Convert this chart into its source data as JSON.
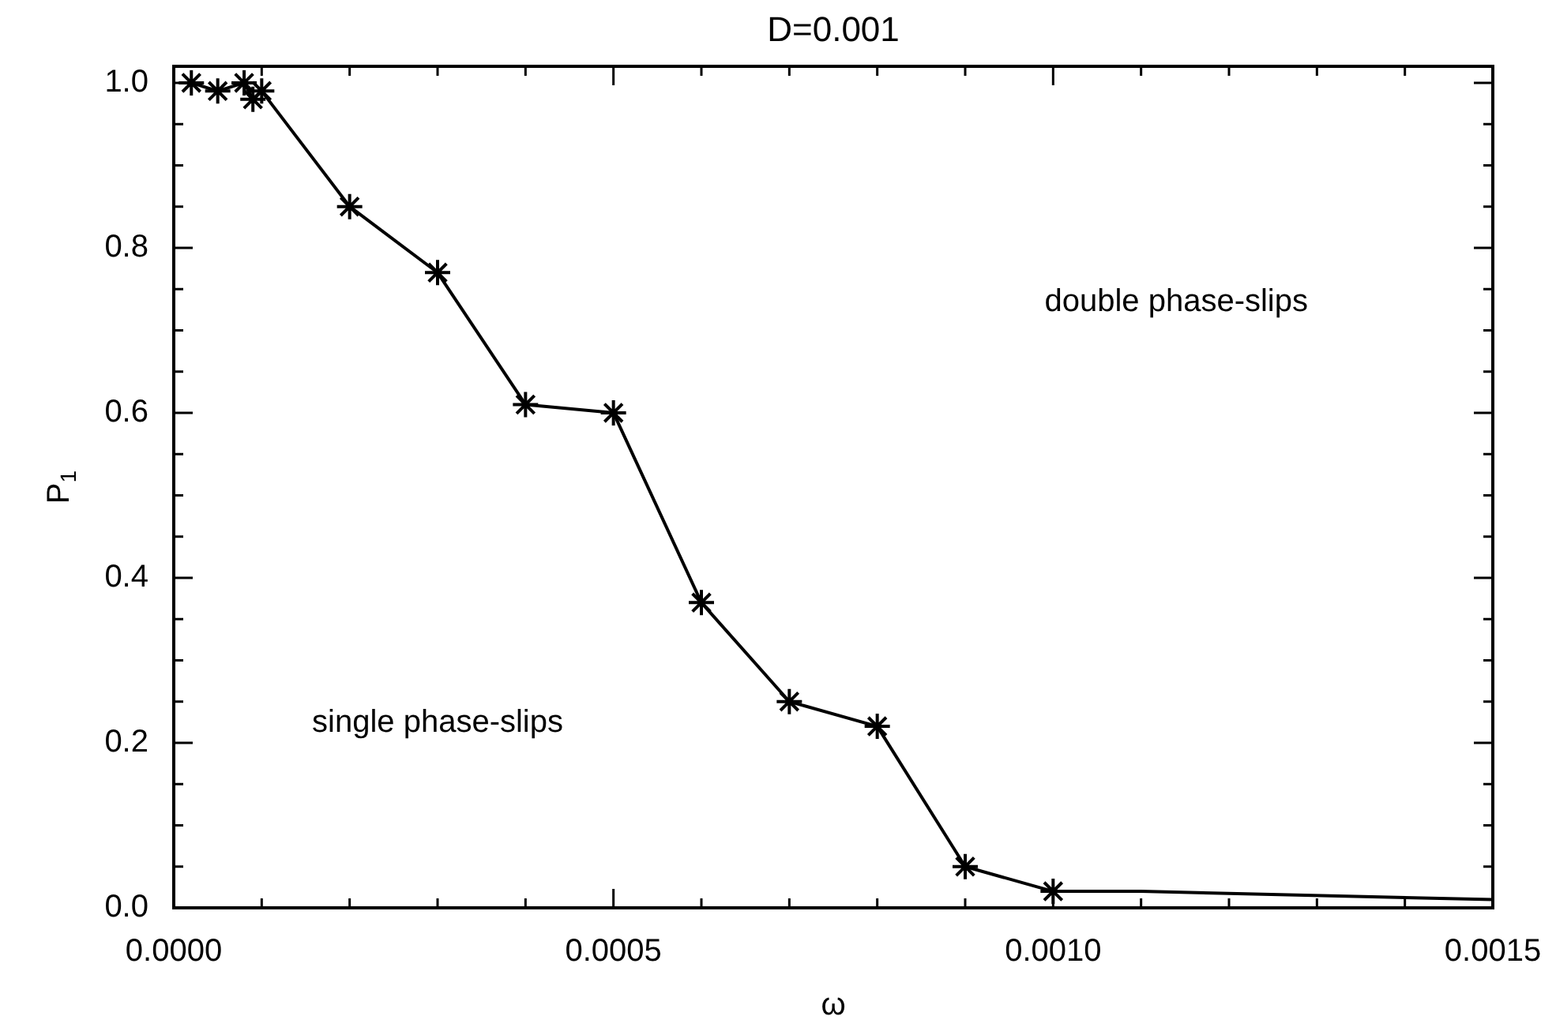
{
  "chart_data": {
    "type": "line",
    "title": "D=0.001",
    "xlabel": "ω",
    "ylabel": "P$_{1}$",
    "marker": "cross",
    "line_style": "solid",
    "xlim": [
      0,
      0.0015
    ],
    "xticks": [
      {
        "value": 0,
        "label": "0.0000"
      },
      {
        "value": 0.0001,
        "label": null
      },
      {
        "value": 0.0002,
        "label": null
      },
      {
        "value": 0.0003,
        "label": null
      },
      {
        "value": 0.0004,
        "label": null
      },
      {
        "value": 0.0005,
        "label": "0.0005"
      },
      {
        "value": 0.0006,
        "label": null
      },
      {
        "value": 0.0007,
        "label": null
      },
      {
        "value": 0.0008,
        "label": null
      },
      {
        "value": 0.0009,
        "label": null
      },
      {
        "value": 0.001,
        "label": "0.0010"
      },
      {
        "value": 0.0011,
        "label": null
      },
      {
        "value": 0.0012,
        "label": null
      },
      {
        "value": 0.0013,
        "label": null
      },
      {
        "value": 0.0014,
        "label": null
      },
      {
        "value": 0.0015,
        "label": "0.0015"
      }
    ],
    "ylim": [
      0,
      1.02
    ],
    "yticks": [
      {
        "value": 0,
        "label": "0.0"
      },
      {
        "value": 0.05,
        "label": null
      },
      {
        "value": 0.1,
        "label": null
      },
      {
        "value": 0.15,
        "label": null
      },
      {
        "value": 0.2,
        "label": "0.2"
      },
      {
        "value": 0.25,
        "label": null
      },
      {
        "value": 0.3,
        "label": null
      },
      {
        "value": 0.35,
        "label": null
      },
      {
        "value": 0.4,
        "label": "0.4"
      },
      {
        "value": 0.45,
        "label": null
      },
      {
        "value": 0.5,
        "label": null
      },
      {
        "value": 0.55,
        "label": null
      },
      {
        "value": 0.6,
        "label": "0.6"
      },
      {
        "value": 0.65,
        "label": null
      },
      {
        "value": 0.7,
        "label": null
      },
      {
        "value": 0.75,
        "label": null
      },
      {
        "value": 0.8,
        "label": "0.8"
      },
      {
        "value": 0.85,
        "label": null
      },
      {
        "value": 0.9,
        "label": null
      },
      {
        "value": 0.95,
        "label": null
      },
      {
        "value": 1.0,
        "label": "1.0"
      }
    ],
    "series": [
      {
        "color": "#000000",
        "x": [
          2e-05,
          5e-05,
          8e-05,
          9e-05,
          0.0001,
          0.0002,
          0.0003,
          0.0004,
          0.0005,
          0.0006,
          0.0007,
          0.0008,
          0.0009,
          0.001
        ],
        "values": [
          1.0,
          0.99,
          1.0,
          0.98,
          0.99,
          0.85,
          0.77,
          0.61,
          0.6,
          0.37,
          0.25,
          0.22,
          0.05,
          0.02
        ]
      },
      {
        "color": "#000000",
        "marker": "none",
        "x": [
          0.001,
          0.0011,
          0.0015
        ],
        "values": [
          0.02,
          0.02,
          0.01
        ]
      }
    ],
    "annotations": [
      "double phase-slips",
      "single phase-slips"
    ]
  }
}
